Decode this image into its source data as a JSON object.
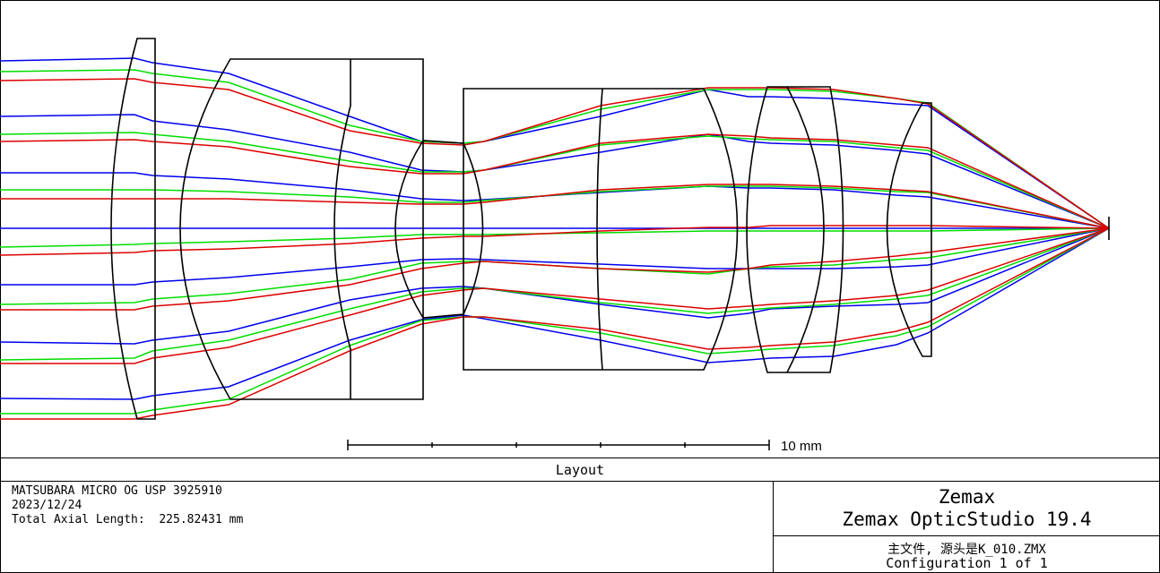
{
  "window": {
    "title": "Layout"
  },
  "colors": {
    "frame": "#000000",
    "ray_blue": "#0000ee",
    "ray_green": "#00dd00",
    "ray_red": "#dd0000"
  },
  "diagram": {
    "scale_bar": {
      "label": "10 mm",
      "divisions": 5
    },
    "elements": [
      "lens-1",
      "lens-2-doublet",
      "lens-3",
      "lens-4-doublet",
      "lens-5",
      "lens-6",
      "lens-7"
    ],
    "ray_fields": [
      "blue",
      "green",
      "red"
    ]
  },
  "info": {
    "lens_name": "MATSUBARA MICRO OG USP 3925910",
    "date": "2023/12/24",
    "axial_length": "Total Axial Length:  225.82431 mm"
  },
  "branding": {
    "company": "Zemax",
    "product": "Zemax OpticStudio 19.4",
    "file": "主文件, 源头是K_010.ZMX",
    "configuration": "Configuration 1 of 1"
  }
}
